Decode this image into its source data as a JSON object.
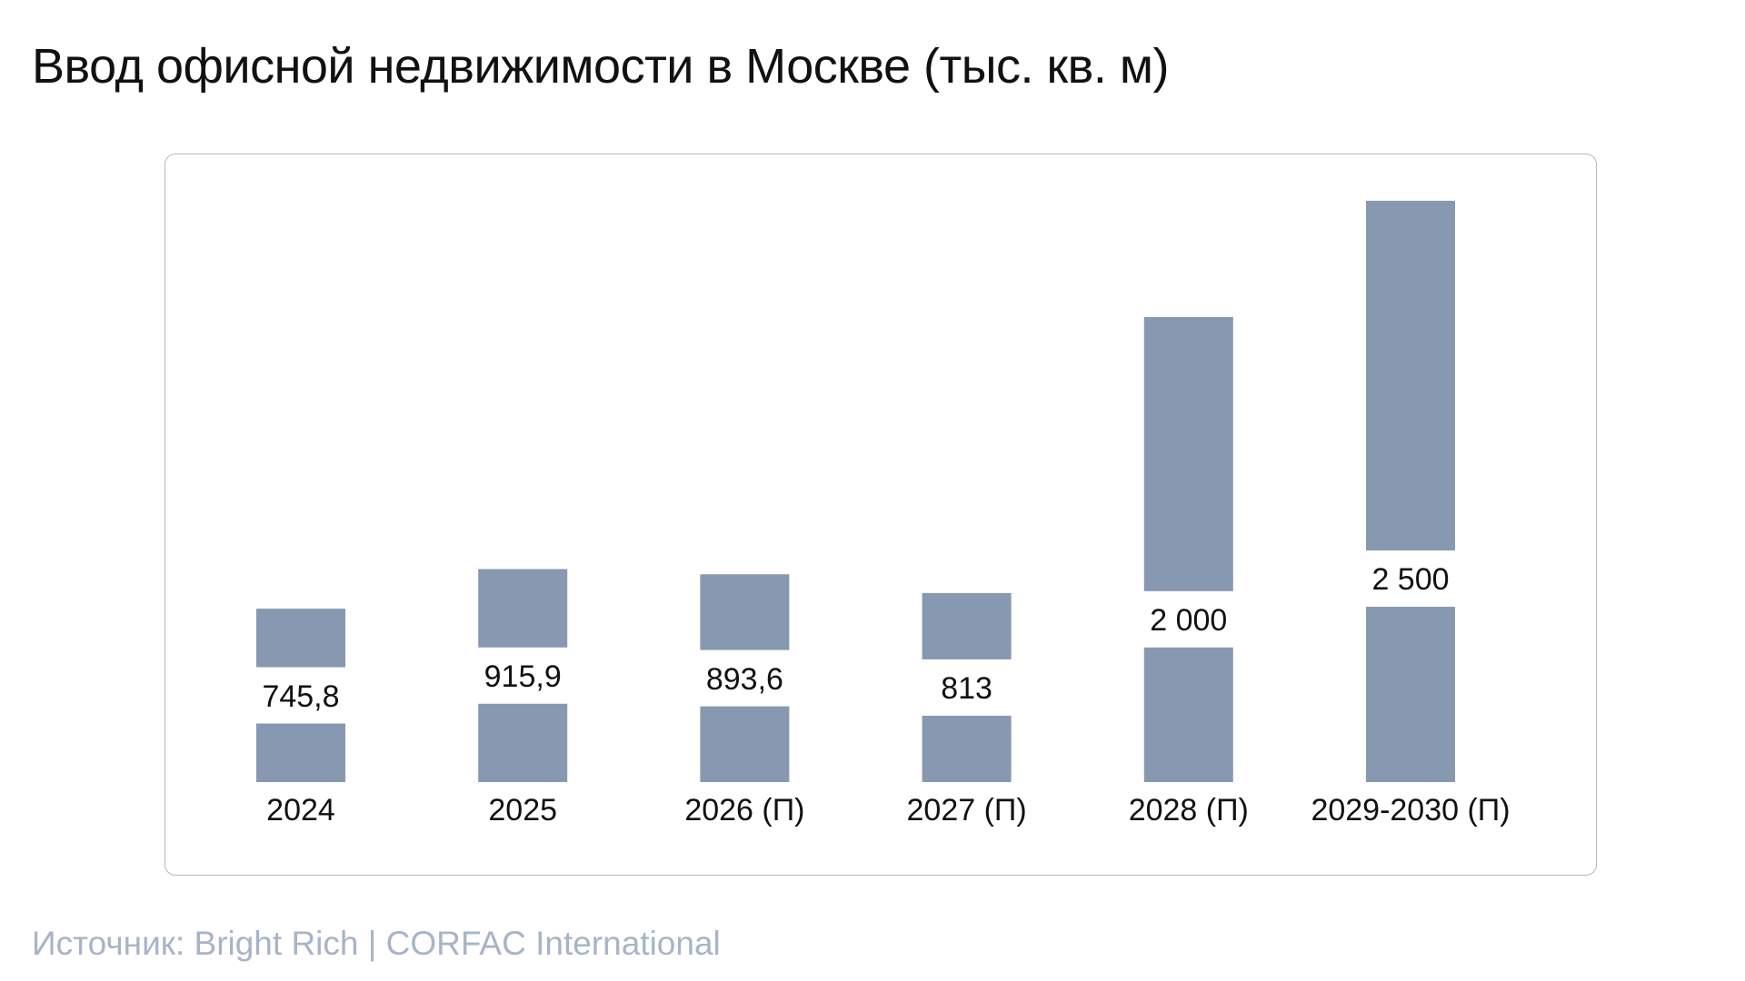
{
  "title": "Ввод офисной недвижимости в Москве (тыс. кв. м)",
  "source": "Источник: Bright Rich | CORFAC International",
  "colors": {
    "bar": "#8798b1",
    "label": "#111111",
    "panel_border": "#aeb9c8",
    "source_text": "#a7b4c8"
  },
  "chart_data": {
    "type": "bar",
    "title": "",
    "xlabel": "",
    "ylabel": "",
    "ylim": [
      0,
      2500
    ],
    "grid": false,
    "categories": [
      "2024",
      "2025",
      "2026 (П)",
      "2027 (П)",
      "2028 (П)",
      "2029-2030 (П)"
    ],
    "values": [
      745.8,
      915.9,
      893.6,
      813,
      2000,
      2500
    ],
    "value_labels": [
      "745,8",
      "915,9",
      "893,6",
      "813",
      "2 000",
      "2 500"
    ]
  }
}
